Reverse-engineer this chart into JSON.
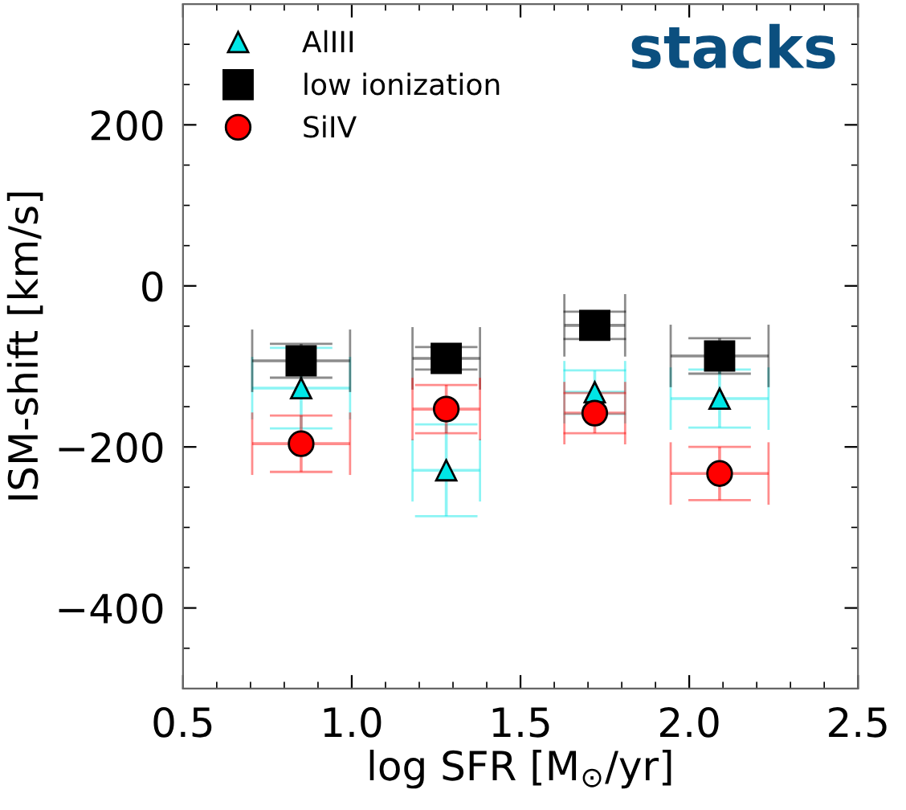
{
  "chart_data": {
    "type": "scatter",
    "xlabel": "log SFR [M$_{⊙}$/yr]",
    "ylabel": "ISM-shift [km/s]",
    "xlim": [
      0.5,
      2.5
    ],
    "xticks": [
      0.5,
      {
        "value": 1,
        "label": "1.0"
      },
      1.5,
      {
        "value": 2,
        "label": "2.0"
      },
      2.5
    ],
    "ylim": [
      -500,
      350
    ],
    "yticks": [
      {
        "value": -400,
        "label": "−400"
      },
      {
        "value": -200,
        "label": "−200"
      },
      0,
      200
    ],
    "legend": "top left",
    "grid": false,
    "annotations": [
      "stacks"
    ],
    "series": [
      {
        "name": "AlIII",
        "color": "#00e6e6",
        "marker": "triangle",
        "x": [
          0.85,
          1.28,
          1.72,
          2.09
        ],
        "values": [
          -127,
          -229,
          -132,
          -140
        ],
        "errors": [
          50,
          57,
          27,
          36
        ],
        "xerrors": [
          0.145,
          0.1,
          0.09,
          0.145
        ]
      },
      {
        "name": "low ionization",
        "color": "#000000",
        "marker": "square",
        "x": [
          0.85,
          1.28,
          1.72,
          2.09
        ],
        "values": [
          -93,
          -90,
          -49,
          -87
        ],
        "errors": [
          21,
          14,
          17,
          22
        ],
        "xerrors": [
          0.145,
          0.1,
          0.09,
          0.145
        ]
      },
      {
        "name": "SiIV",
        "color": "#ff0000",
        "marker": "circle",
        "x": [
          0.85,
          1.28,
          1.72,
          2.09
        ],
        "values": [
          -196,
          -153,
          -158,
          -233
        ],
        "errors": [
          35,
          30,
          25,
          33
        ],
        "xerrors": [
          0.145,
          0.1,
          0.09,
          0.145
        ]
      }
    ]
  }
}
